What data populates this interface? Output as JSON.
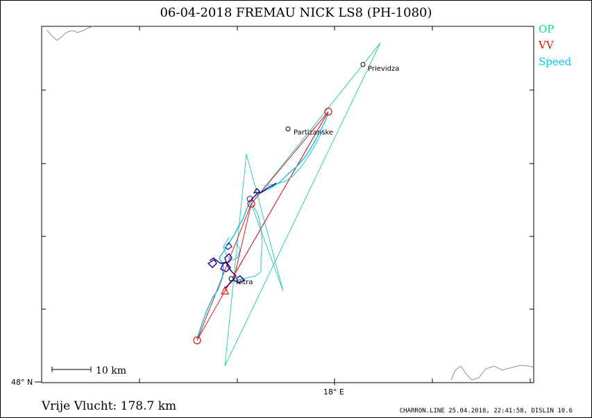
{
  "title": "06-04-2018    FREMAU NICK    LS8 (PH-1080)",
  "legend": [
    {
      "label": "OP",
      "color": "#00e08a"
    },
    {
      "label": "VV",
      "color": "#e01010"
    },
    {
      "label": "Speed",
      "color": "#00c8e8"
    }
  ],
  "axes": {
    "lat_label": "48° N",
    "lon_label": "18° E"
  },
  "scale_bar": {
    "label": "10 km"
  },
  "towns": [
    {
      "name": "Prievidza"
    },
    {
      "name": "Partizanske"
    },
    {
      "name": "Nitra"
    }
  ],
  "colors": {
    "op_task": "#30d0a8",
    "vv_track": "#d02020",
    "speed_trace": "#20c0e0",
    "climb_trace": "#2a0a8a",
    "border": "#909090"
  },
  "footer": {
    "distance": "Vrije Vlucht:  178.7 km",
    "credit": "CHARRON.LINE 25.04.2018, 22:41:58, DISLIN 10.6"
  }
}
